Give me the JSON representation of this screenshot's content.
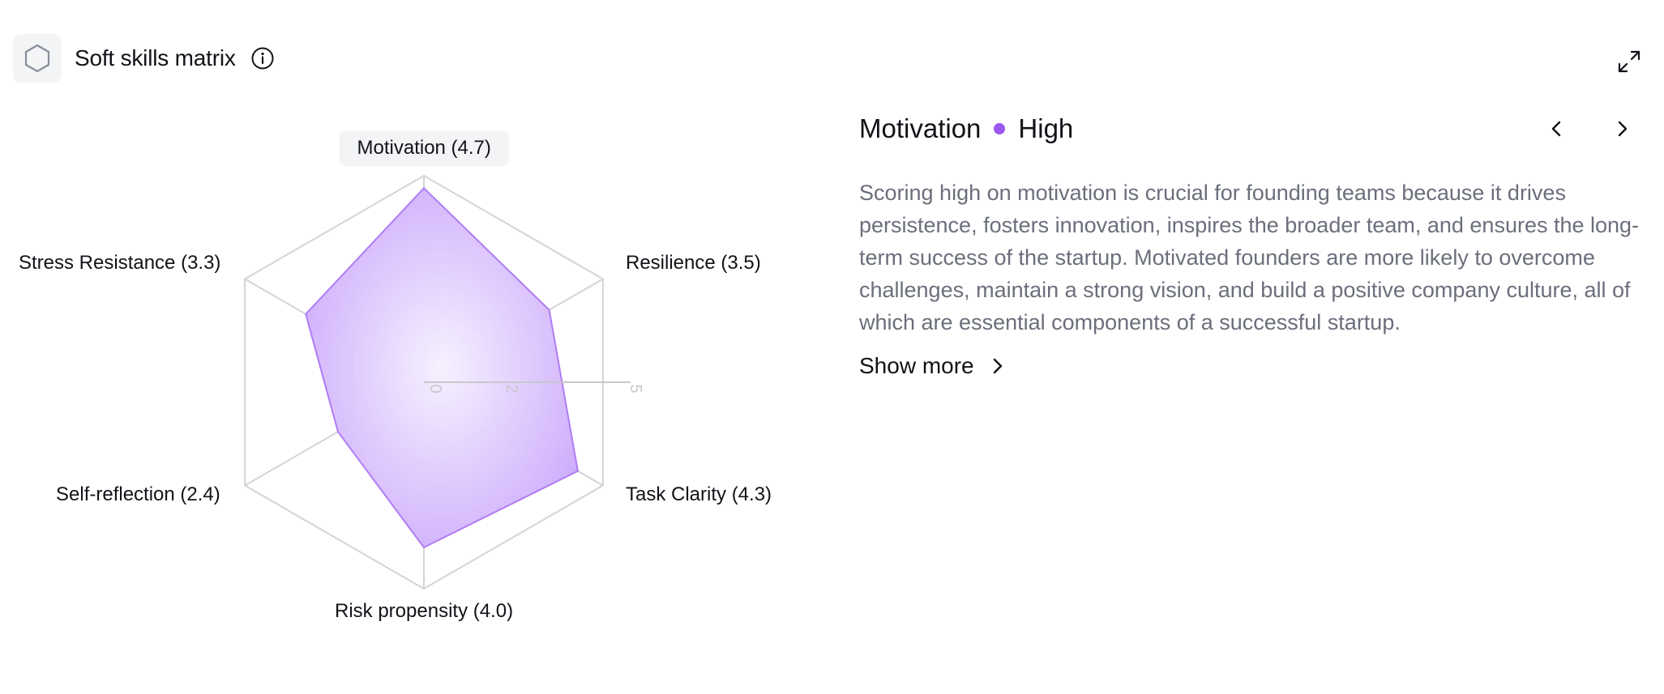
{
  "header": {
    "title": "Soft skills matrix",
    "icon": "hexagon-icon",
    "info_icon": "info-icon",
    "expand_icon": "expand-icon"
  },
  "chart_data": {
    "type": "radar",
    "title": "",
    "axis_max": 5,
    "ring_ticks": [
      0,
      2,
      5
    ],
    "categories": [
      "Motivation",
      "Resilience",
      "Task Clarity",
      "Risk propensity",
      "Self-reflection",
      "Stress Resistance"
    ],
    "labels": [
      "Motivation (4.7)",
      "Resilience (3.5)",
      "Task Clarity (4.3)",
      "Risk propensity (4.0)",
      "Self-reflection (2.4)",
      "Stress Resistance (3.3)"
    ],
    "values": [
      4.7,
      3.5,
      4.3,
      4.0,
      2.4,
      3.3
    ],
    "active_index": 0,
    "colors": {
      "fill": "#c9a6fb",
      "fill_center": "#f6f0ff",
      "stroke": "#b07cf5",
      "grid": "#d4d4d8",
      "tick": "#c7c7cc"
    }
  },
  "details": {
    "skill": "Motivation",
    "level": "High",
    "level_color": "#9b57f0",
    "description": "Scoring high on motivation is crucial for founding teams because it drives persistence, fosters innovation, inspires the broader team, and ensures the long-term success of the startup. Motivated founders are more likely to overcome challenges, maintain a strong vision, and build a positive company culture, all of which are essential components of a successful startup.",
    "show_more": "Show more",
    "prev_icon": "chevron-left-icon",
    "next_icon": "chevron-right-icon"
  }
}
